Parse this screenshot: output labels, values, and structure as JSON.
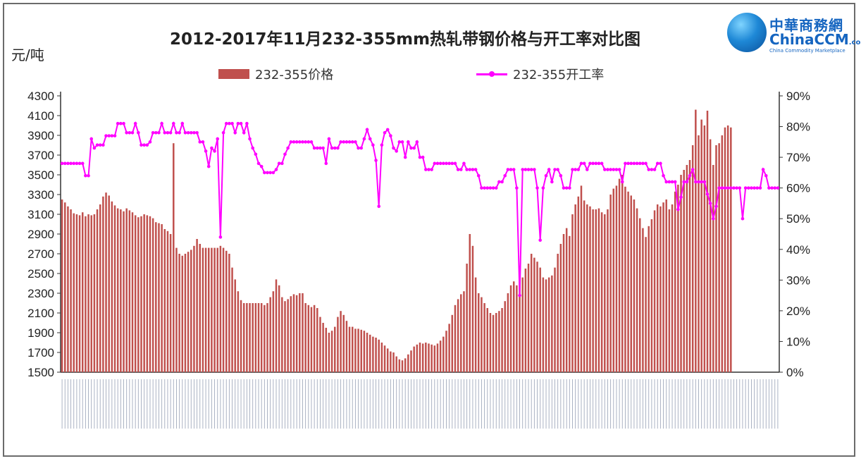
{
  "chart_data": {
    "type": "bar",
    "title": "2012-2017年11月232-355mm热轧带钢价格与开工率对比图",
    "ylabel_left": "元/吨",
    "ylim_left": [
      1500,
      4300
    ],
    "yticks_left": [
      "4300",
      "4100",
      "3900",
      "3700",
      "3500",
      "3300",
      "3100",
      "2900",
      "2700",
      "2500",
      "2300",
      "2100",
      "1900",
      "1700",
      "1500"
    ],
    "ylim_right": [
      0,
      90
    ],
    "yticks_right": [
      "90%",
      "80%",
      "70%",
      "60%",
      "50%",
      "40%",
      "30%",
      "20%",
      "10%",
      "0%"
    ],
    "legend_placement": "top",
    "series": [
      {
        "name": "232-355价格",
        "type": "bar",
        "color": "#c0504d",
        "values": [
          3250,
          3220,
          3180,
          3150,
          3110,
          3100,
          3090,
          3120,
          3080,
          3100,
          3090,
          3100,
          3150,
          3200,
          3280,
          3320,
          3290,
          3230,
          3190,
          3160,
          3150,
          3130,
          3160,
          3140,
          3120,
          3090,
          3070,
          3080,
          3100,
          3090,
          3080,
          3060,
          3020,
          3010,
          3000,
          2950,
          2930,
          2900,
          3820,
          2760,
          2700,
          2680,
          2700,
          2720,
          2740,
          2780,
          2850,
          2800,
          2760,
          2760,
          2760,
          2760,
          2760,
          2760,
          2780,
          2760,
          2730,
          2700,
          2560,
          2440,
          2320,
          2230,
          2200,
          2200,
          2200,
          2200,
          2200,
          2200,
          2200,
          2180,
          2200,
          2260,
          2320,
          2440,
          2380,
          2260,
          2220,
          2240,
          2270,
          2290,
          2280,
          2300,
          2300,
          2200,
          2180,
          2160,
          2180,
          2150,
          2060,
          2000,
          1950,
          1900,
          1920,
          1960,
          2060,
          2120,
          2080,
          2020,
          1960,
          1960,
          1940,
          1940,
          1930,
          1920,
          1900,
          1880,
          1860,
          1850,
          1830,
          1800,
          1770,
          1740,
          1710,
          1700,
          1660,
          1630,
          1620,
          1640,
          1680,
          1720,
          1760,
          1780,
          1800,
          1790,
          1800,
          1790,
          1780,
          1770,
          1790,
          1820,
          1860,
          1920,
          1990,
          2080,
          2180,
          2240,
          2290,
          2320,
          2600,
          2900,
          2780,
          2460,
          2300,
          2260,
          2200,
          2150,
          2100,
          2080,
          2100,
          2120,
          2150,
          2220,
          2300,
          2380,
          2420,
          2380,
          2420,
          2460,
          2550,
          2600,
          2700,
          2660,
          2620,
          2560,
          2460,
          2440,
          2460,
          2480,
          2560,
          2700,
          2800,
          2900,
          2960,
          2880,
          3100,
          3200,
          3280,
          3390,
          3240,
          3200,
          3180,
          3150,
          3150,
          3160,
          3120,
          3100,
          3150,
          3300,
          3360,
          3390,
          3460,
          3500,
          3380,
          3330,
          3290,
          3250,
          3160,
          3060,
          2960,
          2870,
          2980,
          3050,
          3140,
          3200,
          3180,
          3220,
          3250,
          3150,
          3200,
          3330,
          3400,
          3500,
          3550,
          3600,
          3650,
          3800,
          4160,
          3900,
          4060,
          4000,
          4150,
          3860,
          3600,
          3800,
          3820,
          3900,
          3980,
          4000,
          3980
        ]
      },
      {
        "name": "232-355开工率",
        "type": "line",
        "color": "#ff00ff",
        "values": [
          68,
          68,
          68,
          68,
          68,
          68,
          68,
          68,
          64,
          64,
          76,
          73,
          74,
          74,
          74,
          77,
          77,
          77,
          77,
          81,
          81,
          81,
          78,
          78,
          78,
          81,
          78,
          74,
          74,
          74,
          75,
          78,
          78,
          78,
          81,
          78,
          78,
          78,
          81,
          78,
          78,
          81,
          78,
          78,
          78,
          78,
          78,
          75,
          75,
          72,
          67,
          73,
          72,
          76,
          44,
          78,
          81,
          81,
          81,
          78,
          81,
          81,
          78,
          81,
          76,
          73,
          71,
          68,
          67,
          65,
          65,
          65,
          65,
          66,
          68,
          68,
          71,
          73,
          75,
          75,
          75,
          75,
          75,
          75,
          75,
          75,
          73,
          73,
          73,
          73,
          68,
          76,
          73,
          73,
          73,
          75,
          75,
          75,
          75,
          75,
          75,
          73,
          73,
          76,
          79,
          76,
          74,
          69,
          54,
          74,
          78,
          79,
          77,
          73,
          72,
          75,
          75,
          70,
          75,
          73,
          73,
          75,
          70,
          70,
          66,
          66,
          66,
          68,
          68,
          68,
          68,
          68,
          68,
          68,
          68,
          66,
          66,
          68,
          66,
          66,
          66,
          66,
          64,
          60,
          60,
          60,
          60,
          60,
          60,
          62,
          62,
          64,
          66,
          66,
          66,
          60,
          25,
          66,
          66,
          66,
          66,
          66,
          60,
          43,
          60,
          64,
          66,
          62,
          66,
          66,
          64,
          60,
          60,
          60,
          66,
          66,
          66,
          68,
          68,
          66,
          68,
          68,
          68,
          68,
          68,
          66,
          66,
          66,
          66,
          66,
          66,
          62,
          68,
          68,
          68,
          68,
          68,
          68,
          68,
          68,
          66,
          66,
          66,
          68,
          68,
          64,
          62,
          62,
          62,
          62,
          53,
          57,
          62,
          62,
          64,
          66,
          62,
          62,
          62,
          62,
          58,
          55,
          50,
          54,
          60,
          60,
          60,
          60,
          60,
          60,
          60,
          60,
          50,
          60,
          60,
          60,
          60,
          60,
          60,
          66,
          64,
          60,
          60,
          60,
          60
        ]
      }
    ]
  }
}
